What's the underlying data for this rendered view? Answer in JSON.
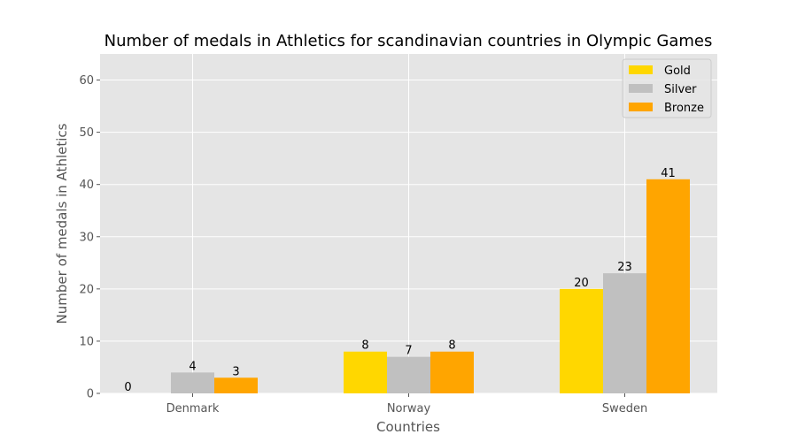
{
  "chart_data": {
    "type": "bar",
    "title": "Number of medals in Athletics for scandinavian countries in Olympic Games",
    "xlabel": "Countries",
    "ylabel": "Number of medals in Athletics",
    "categories": [
      "Denmark",
      "Norway",
      "Sweden"
    ],
    "series": [
      {
        "name": "Gold",
        "color": "#FFD700",
        "values": [
          0,
          8,
          20
        ]
      },
      {
        "name": "Silver",
        "color": "#C0C0C0",
        "values": [
          4,
          7,
          23
        ]
      },
      {
        "name": "Bronze",
        "color": "#FFA500",
        "values": [
          3,
          8,
          41
        ]
      }
    ],
    "ylim": [
      0,
      65
    ],
    "yticks": [
      0,
      10,
      20,
      30,
      40,
      50,
      60
    ],
    "grid": true,
    "legend_position": "top-right",
    "plot_background": "#E5E5E5",
    "grid_color": "#FFFFFF"
  }
}
